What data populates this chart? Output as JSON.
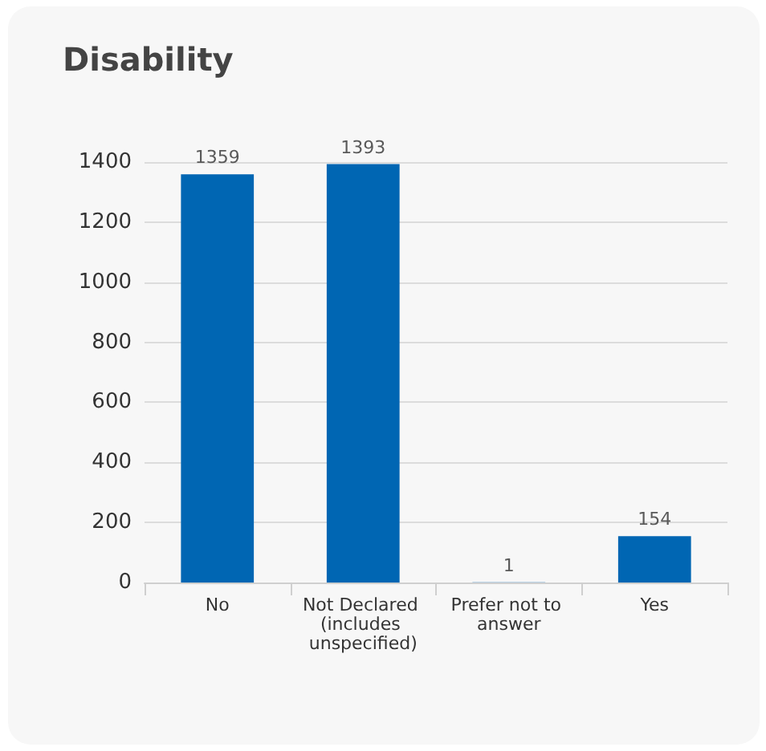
{
  "chart_data": {
    "type": "bar",
    "title": "Disability",
    "categories": [
      "No",
      "Not Declared (includes unspecified)",
      "Prefer not to answer",
      "Yes"
    ],
    "values": [
      1359,
      1393,
      1,
      154
    ],
    "color": "#0066b3",
    "ylim": [
      0,
      1400
    ],
    "yticks": [
      0,
      200,
      400,
      600,
      800,
      1000,
      1200,
      1400
    ],
    "grid": "y",
    "data_labels": true
  }
}
